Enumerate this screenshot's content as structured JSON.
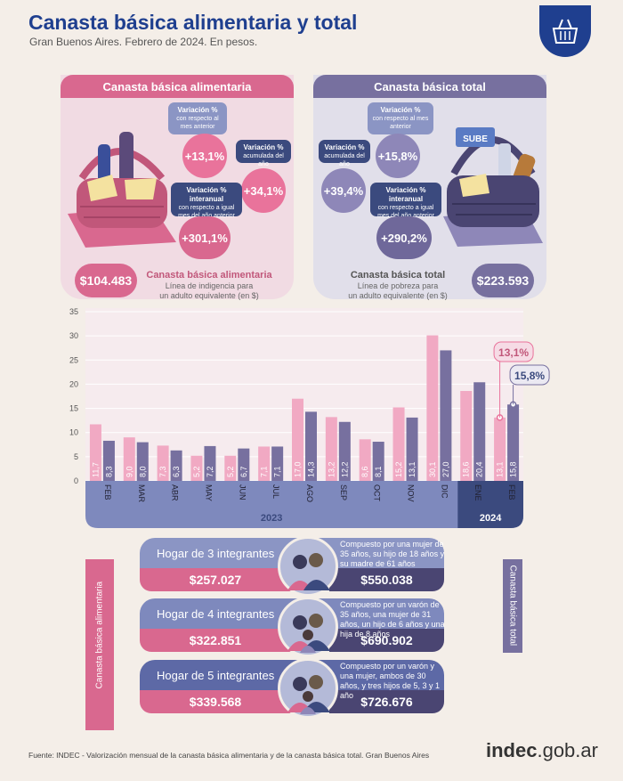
{
  "header": {
    "title": "Canasta básica alimentaria y total",
    "subtitle": "Gran Buenos Aires. Febrero de 2024. En pesos."
  },
  "cba": {
    "title": "Canasta básica alimentaria",
    "monthly": {
      "label": "Variación %",
      "desc": "con respecto al mes anterior",
      "value": "+13,1%"
    },
    "accum": {
      "label": "Variación %",
      "desc": "acumulada del año",
      "value": "+34,1%"
    },
    "interannual": {
      "label": "Variación % interanual",
      "desc": "con respecto a igual mes del año anterior",
      "value": "+301,1%"
    },
    "price": "$104.483",
    "legend_title": "Canasta básica alimentaria",
    "legend_line1": "Línea de indigencia para",
    "legend_line2": "un adulto equivalente (en $)",
    "side_label": "Canasta básica alimentaria"
  },
  "cbt": {
    "title": "Canasta básica total",
    "monthly": {
      "label": "Variación %",
      "desc": "con respecto al mes anterior",
      "value": "+15,8%"
    },
    "accum": {
      "label": "Variación %",
      "desc": "acumulada del año",
      "value": "+39,4%"
    },
    "interannual": {
      "label": "Variación % interanual",
      "desc": "con respecto a igual mes del año anterior",
      "value": "+290,2%"
    },
    "price": "$223.593",
    "legend_title": "Canasta básica total",
    "legend_line1": "Línea de pobreza para",
    "legend_line2": "un adulto equivalente (en $)",
    "side_label": "Canasta básica total",
    "card_text": "SUBE"
  },
  "chart_data": {
    "type": "bar",
    "categories": [
      "FEB",
      "MAR",
      "ABR",
      "MAY",
      "JUN",
      "JUL",
      "AGO",
      "SEP",
      "OCT",
      "NOV",
      "DIC",
      "ENE",
      "FEB"
    ],
    "year_labels": [
      "2023",
      "2024"
    ],
    "series": [
      {
        "values": [
          11.7,
          9.0,
          7.3,
          5.2,
          5.2,
          7.1,
          17.0,
          13.2,
          8.6,
          15.2,
          30.1,
          18.6,
          13.1
        ],
        "labels": [
          "11,7",
          "9,0",
          "7,3",
          "5,2",
          "5,2",
          "7,1",
          "17,0",
          "13,2",
          "8,6",
          "15,2",
          "30,1",
          "18,6",
          "13,1"
        ],
        "color": "#f1a9c3"
      },
      {
        "values": [
          8.3,
          8.0,
          6.3,
          7.2,
          6.7,
          7.1,
          14.3,
          12.2,
          8.1,
          13.1,
          27.0,
          20.4,
          15.8
        ],
        "labels": [
          "8,3",
          "8,0",
          "6,3",
          "7,2",
          "6,7",
          "7,1",
          "14,3",
          "12,2",
          "8,1",
          "13,1",
          "27,0",
          "20,4",
          "15,8"
        ],
        "color": "#77709f"
      }
    ],
    "y_ticks": [
      0,
      5,
      10,
      15,
      20,
      25,
      30,
      35
    ],
    "ylim": [
      0,
      35
    ],
    "highlight_labels": [
      "13,1%",
      "15,8%"
    ],
    "grid": true
  },
  "households": [
    {
      "label": "Hogar de 3 integrantes",
      "cba": "$257.027",
      "cbt": "$550.038",
      "desc": "Compuesto por una mujer de 35 años, su hijo de 18 años y su madre de 61 años"
    },
    {
      "label": "Hogar de 4 integrantes",
      "cba": "$322.851",
      "cbt": "$690.902",
      "desc": "Compuesto por un varón de 35 años, una mujer de 31 años, un hijo de 6 años y una hija de 8 años"
    },
    {
      "label": "Hogar de 5 integrantes",
      "cba": "$339.568",
      "cbt": "$726.676",
      "desc": "Compuesto por un varón y una mujer, ambos de 30 años, y tres hijos de 5, 3 y 1 año"
    }
  ],
  "footer": {
    "source": "Fuente: INDEC - Valorización mensual de la canasta básica alimentaria y de la canasta básica total. Gran Buenos Aires",
    "brand": "indec",
    "brand_suffix": ".gob.ar"
  },
  "colors": {
    "pink": "#d9688f",
    "light_pink": "#f1a9c3",
    "purple": "#77709f",
    "navy": "#1f3f8f",
    "chart_bg": "#f7eef0"
  }
}
